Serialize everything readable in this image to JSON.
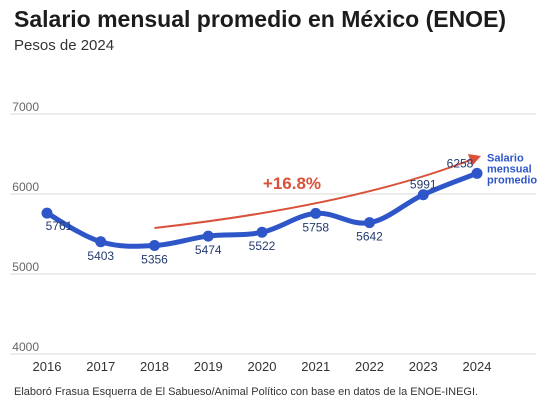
{
  "header": {
    "title": "Salario mensual promedio en México (ENOE)",
    "subtitle": "Pesos de 2024"
  },
  "footer": {
    "source": "Elaboró Frasua Esquerra de El Sabueso/Animal Político con base en datos de la ENOE-INEGI."
  },
  "chart_data": {
    "type": "line",
    "title": "Salario mensual promedio en México (ENOE)",
    "subtitle": "Pesos de 2024",
    "xlabel": "",
    "ylabel": "",
    "x": [
      "2016",
      "2017",
      "2018",
      "2019",
      "2020",
      "2021",
      "2022",
      "2023",
      "2024"
    ],
    "series": [
      {
        "name": "Salario mensual promedio",
        "values": [
          5761,
          5403,
          5356,
          5474,
          5522,
          5758,
          5642,
          5991,
          6258
        ],
        "color": "#2f56c9"
      }
    ],
    "ylim": [
      4000,
      7000
    ],
    "yticks": [
      "4000",
      "5000",
      "6000",
      "7000"
    ],
    "grid": true,
    "annotation": {
      "text": "+16.8%",
      "color": "#d9513a",
      "arrow_from": "2018",
      "arrow_to": "2024"
    }
  }
}
